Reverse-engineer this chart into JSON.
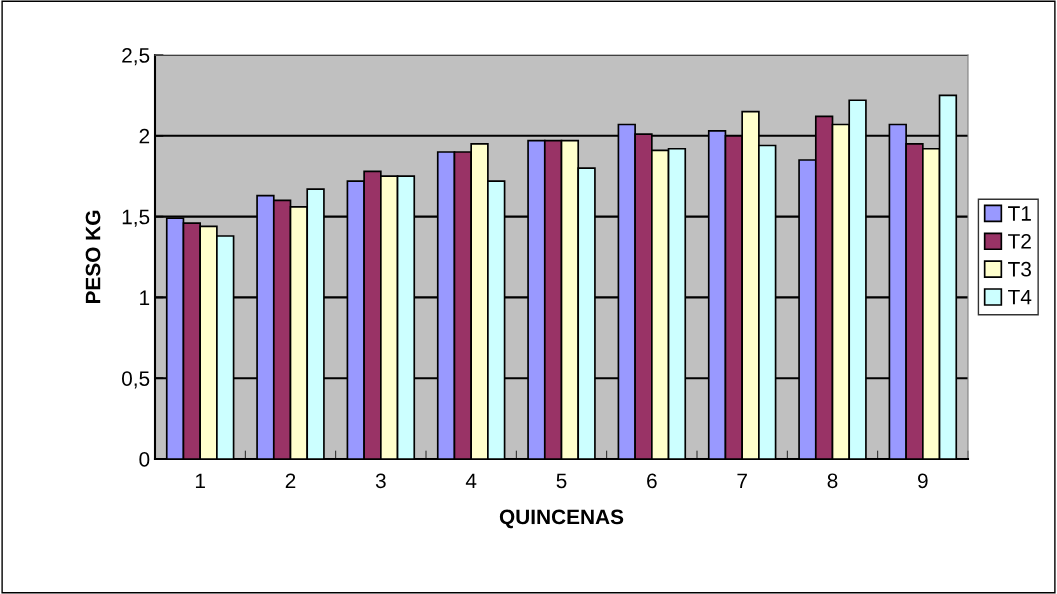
{
  "chart_data": {
    "type": "bar",
    "xlabel": "QUINCENAS",
    "ylabel": "PESO KG",
    "categories": [
      "1",
      "2",
      "3",
      "4",
      "5",
      "6",
      "7",
      "8",
      "9"
    ],
    "series": [
      {
        "name": "T1",
        "color": "#9999ff",
        "values": [
          1.49,
          1.63,
          1.72,
          1.9,
          1.97,
          2.07,
          2.03,
          1.85,
          2.07
        ]
      },
      {
        "name": "T2",
        "color": "#993366",
        "values": [
          1.46,
          1.6,
          1.78,
          1.9,
          1.97,
          2.01,
          2.0,
          2.12,
          1.95
        ]
      },
      {
        "name": "T3",
        "color": "#ffffcc",
        "values": [
          1.44,
          1.56,
          1.75,
          1.95,
          1.97,
          1.91,
          2.15,
          2.07,
          1.92
        ]
      },
      {
        "name": "T4",
        "color": "#ccffff",
        "values": [
          1.38,
          1.67,
          1.75,
          1.72,
          1.8,
          1.92,
          1.94,
          2.22,
          2.25
        ]
      }
    ],
    "ylim": [
      0,
      2.5
    ],
    "yticks": [
      {
        "value": 0,
        "label": "0"
      },
      {
        "value": 0.5,
        "label": "0,5"
      },
      {
        "value": 1,
        "label": "1"
      },
      {
        "value": 1.5,
        "label": "1,5"
      },
      {
        "value": 2,
        "label": "2"
      },
      {
        "value": 2.5,
        "label": "2,5"
      }
    ],
    "grid": "y",
    "legend": "right"
  }
}
